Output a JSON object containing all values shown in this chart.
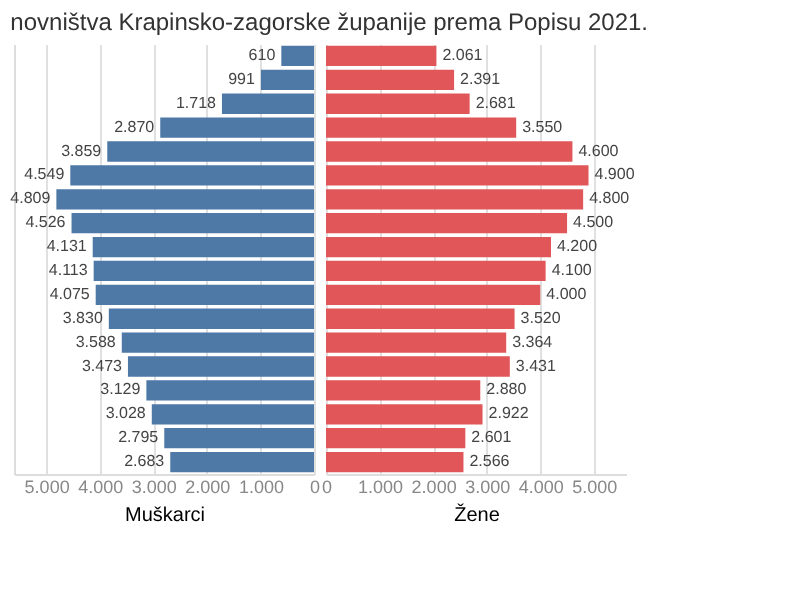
{
  "chart_data": [
    {
      "type": "bar",
      "orientation": "horizontal",
      "title": "novništva Krapinsko-zagorske županije prema Popisu 2021.",
      "xlabel": "Muškarci",
      "categories": [
        null,
        null,
        null,
        null,
        null,
        null,
        null,
        null,
        null,
        null,
        null,
        null,
        null,
        null,
        null,
        null,
        null,
        null
      ],
      "series": [
        {
          "color": "#4e79a7",
          "values": [
            610,
            991,
            1718,
            2870,
            3859,
            4549,
            4809,
            4526,
            4131,
            4113,
            4075,
            3830,
            3588,
            3473,
            3129,
            3028,
            2795,
            2683
          ],
          "value_labels": [
            "610",
            "991",
            "1.718",
            "2.870",
            "3.859",
            "4.549",
            "4.809",
            "4.526",
            "4.131",
            "4.113",
            "4.075",
            "3.830",
            "3.588",
            "3.473",
            "3.129",
            "3.028",
            "2.795",
            "2.683"
          ]
        }
      ],
      "xlim": [
        5600,
        0
      ],
      "xticks": [
        {
          "value": 5000,
          "label": "5.000"
        },
        {
          "value": 4000,
          "label": "4.000"
        },
        {
          "value": 3000,
          "label": "3.000"
        },
        {
          "value": 2000,
          "label": "2.000"
        },
        {
          "value": 1000,
          "label": "1.000"
        },
        0
      ],
      "grid": "x",
      "tick_labels": "x"
    },
    {
      "type": "bar",
      "orientation": "horizontal",
      "xlabel": "Žene",
      "categories": [
        null,
        null,
        null,
        null,
        null,
        null,
        null,
        null,
        null,
        null,
        null,
        null,
        null,
        null,
        null,
        null,
        null,
        null
      ],
      "series": [
        {
          "color": "#e15759",
          "values": [
            2061,
            2391,
            2681,
            3550,
            4600,
            4900,
            4800,
            4500,
            4200,
            4100,
            4000,
            3520,
            3364,
            3431,
            2880,
            2922,
            2601,
            2566
          ],
          "value_labels": [
            "2.061",
            "2.391",
            "2.681",
            "3.550",
            "4.600",
            "4.900",
            "4.800",
            "4.500",
            "4.200",
            "4.100",
            "4.000",
            "3.520",
            "3.364",
            "3.431",
            "2.880",
            "2.922",
            "2.601",
            "2.566"
          ]
        }
      ],
      "xlim": [
        0,
        5600
      ],
      "xticks": [
        0,
        {
          "value": 1000,
          "label": "1.000"
        },
        {
          "value": 2000,
          "label": "2.000"
        },
        {
          "value": 3000,
          "label": "3.000"
        },
        {
          "value": 4000,
          "label": "4.000"
        },
        {
          "value": 5000,
          "label": "5.000"
        }
      ],
      "grid": "x",
      "tick_labels": "x"
    }
  ]
}
